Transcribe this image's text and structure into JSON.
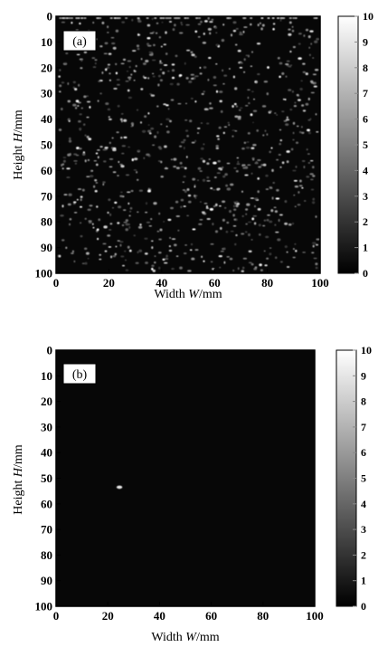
{
  "chart_data": [
    {
      "type": "heatmap",
      "panel_label": "(a)",
      "xlabel": {
        "text": "Width ",
        "var": "W",
        "unit": "/mm"
      },
      "ylabel": {
        "text": "Height ",
        "var": "H",
        "unit": "/mm"
      },
      "xlim": [
        0,
        100
      ],
      "ylim": [
        0,
        100
      ],
      "y_inverted": true,
      "x_ticks": [
        0,
        20,
        40,
        60,
        80,
        100
      ],
      "y_ticks": [
        0,
        10,
        20,
        30,
        40,
        50,
        60,
        70,
        80,
        90,
        100
      ],
      "colorbar": {
        "min": 0,
        "max": 10,
        "ticks": [
          0,
          1,
          2,
          3,
          4,
          5,
          6,
          7,
          8,
          9,
          10
        ],
        "colormap": "gray"
      },
      "background_value": 0,
      "pattern": "dense random speckle of bright points over the whole field (approx. 900 points, values 2–10)",
      "bright_spots": []
    },
    {
      "type": "heatmap",
      "panel_label": "(b)",
      "xlabel": {
        "text": "Width ",
        "var": "W",
        "unit": "/mm"
      },
      "ylabel": {
        "text": "Height ",
        "var": "H",
        "unit": "/mm"
      },
      "xlim": [
        0,
        100
      ],
      "ylim": [
        0,
        100
      ],
      "y_inverted": true,
      "x_ticks": [
        0,
        20,
        40,
        60,
        80,
        100
      ],
      "y_ticks": [
        0,
        10,
        20,
        30,
        40,
        50,
        60,
        70,
        80,
        90,
        100
      ],
      "colorbar": {
        "min": 0,
        "max": 10,
        "ticks": [
          0,
          1,
          2,
          3,
          4,
          5,
          6,
          7,
          8,
          9,
          10
        ],
        "colormap": "gray"
      },
      "background_value": 0,
      "pattern": "nearly uniform zero field with a single bright spot",
      "bright_spots": [
        {
          "x": 24.5,
          "y": 53.5,
          "value": 9
        }
      ]
    }
  ]
}
